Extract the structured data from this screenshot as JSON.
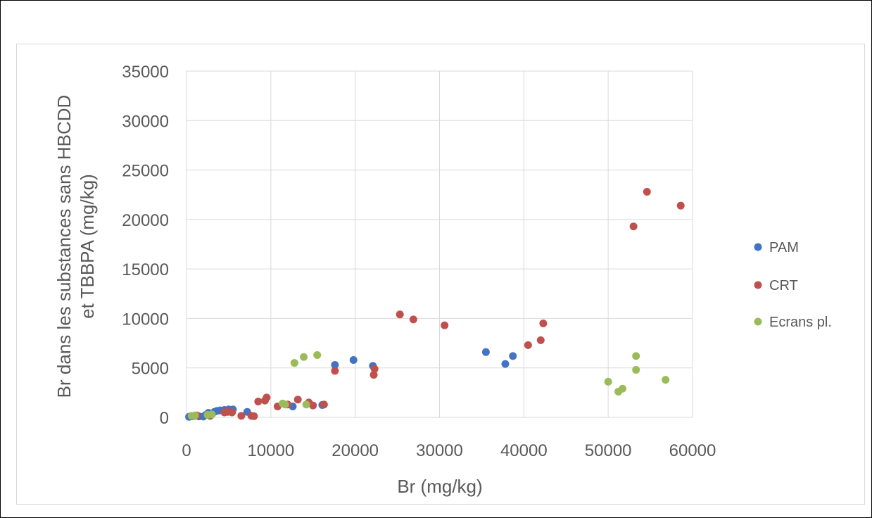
{
  "chart_data": {
    "type": "scatter",
    "title": "",
    "xlabel": "Br (mg/kg)",
    "ylabel_lines": [
      "Br  dans les  substances sans HBCDD",
      "et TBBPA  (mg/kg)"
    ],
    "xlim": [
      0,
      60000
    ],
    "ylim": [
      0,
      35000
    ],
    "xticks": [
      "0",
      "10000",
      "20000",
      "30000",
      "40000",
      "50000",
      "60000"
    ],
    "yticks": [
      "0",
      "5000",
      "10000",
      "15000",
      "20000",
      "25000",
      "30000",
      "35000"
    ],
    "grid": true,
    "legend_position": "right",
    "series": [
      {
        "name": "PAM",
        "color": "#4472c4",
        "points": [
          [
            300,
            50
          ],
          [
            600,
            100
          ],
          [
            1000,
            150
          ],
          [
            1500,
            100
          ],
          [
            2000,
            80
          ],
          [
            2300,
            250
          ],
          [
            2600,
            450
          ],
          [
            3000,
            300
          ],
          [
            3300,
            550
          ],
          [
            3600,
            650
          ],
          [
            4000,
            700
          ],
          [
            4500,
            750
          ],
          [
            5000,
            800
          ],
          [
            5500,
            800
          ],
          [
            7200,
            550
          ],
          [
            12600,
            1100
          ],
          [
            16100,
            1250
          ],
          [
            17600,
            5300
          ],
          [
            19800,
            5800
          ],
          [
            22100,
            5200
          ],
          [
            35500,
            6600
          ],
          [
            37800,
            5400
          ],
          [
            38700,
            6200
          ]
        ]
      },
      {
        "name": "CRT",
        "color": "#c0504d",
        "points": [
          [
            1200,
            200
          ],
          [
            2800,
            150
          ],
          [
            4500,
            500
          ],
          [
            4900,
            550
          ],
          [
            5400,
            500
          ],
          [
            6500,
            150
          ],
          [
            7700,
            150
          ],
          [
            8000,
            120
          ],
          [
            8500,
            1600
          ],
          [
            9300,
            1700
          ],
          [
            9500,
            2000
          ],
          [
            10800,
            1100
          ],
          [
            12000,
            1300
          ],
          [
            13200,
            1800
          ],
          [
            14500,
            1500
          ],
          [
            15000,
            1200
          ],
          [
            16300,
            1300
          ],
          [
            17600,
            4700
          ],
          [
            22200,
            4300
          ],
          [
            22300,
            4900
          ],
          [
            25300,
            10400
          ],
          [
            26900,
            9900
          ],
          [
            30600,
            9300
          ],
          [
            40500,
            7300
          ],
          [
            42000,
            7800
          ],
          [
            42300,
            9500
          ],
          [
            53000,
            19300
          ],
          [
            54600,
            22800
          ],
          [
            58600,
            21400
          ]
        ]
      },
      {
        "name": "Ecrans pl.",
        "color": "#9bbb59",
        "points": [
          [
            600,
            150
          ],
          [
            1000,
            200
          ],
          [
            2500,
            250
          ],
          [
            3000,
            300
          ],
          [
            11400,
            1400
          ],
          [
            11700,
            1300
          ],
          [
            12800,
            5500
          ],
          [
            13900,
            6100
          ],
          [
            14200,
            1300
          ],
          [
            15500,
            6300
          ],
          [
            50000,
            3600
          ],
          [
            51200,
            2600
          ],
          [
            51700,
            2900
          ],
          [
            53300,
            6200
          ],
          [
            53300,
            4800
          ],
          [
            56800,
            3800
          ]
        ]
      }
    ]
  }
}
